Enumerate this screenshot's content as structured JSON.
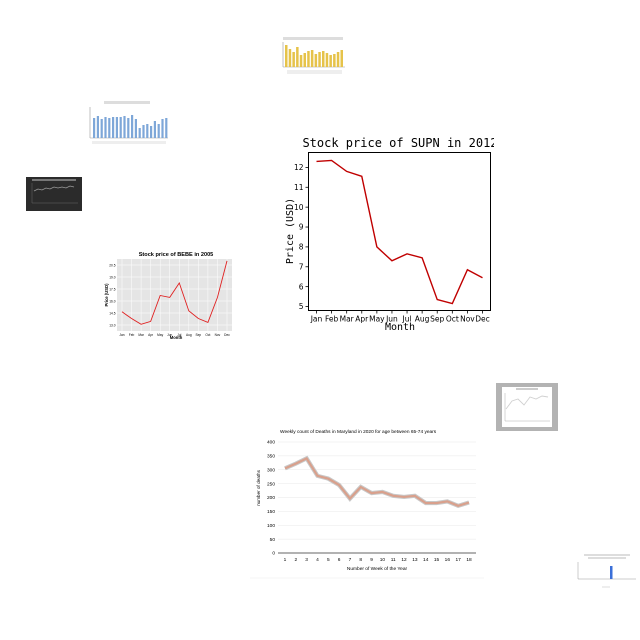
{
  "main_chart": {
    "title": "Stock price of SUPN in 2012",
    "xlabel": "Month",
    "ylabel": "Price (USD)"
  },
  "thumb_bede": {
    "title": "Stock price of BEBE in 2005",
    "xlabel": "Month",
    "ylabel": "Price (USD)"
  },
  "thumb_maryland": {
    "title": "Weekly count of Deaths in Maryland in 2020 for age between 65-74 years",
    "xlabel": "Number of Week of the Year",
    "ylabel": "number of deaths"
  },
  "chart_data": [
    {
      "type": "line",
      "title": "Stock price of SUPN in 2012",
      "xlabel": "Month",
      "ylabel": "Price (USD)",
      "categories": [
        "Jan",
        "Feb",
        "Mar",
        "Apr",
        "May",
        "Jun",
        "Jul",
        "Aug",
        "Sep",
        "Oct",
        "Nov",
        "Dec"
      ],
      "values": [
        12.3,
        12.35,
        11.8,
        11.55,
        8.0,
        7.3,
        7.65,
        7.45,
        5.35,
        5.15,
        6.85,
        6.45
      ],
      "yticks": [
        5,
        6,
        7,
        8,
        9,
        10,
        11,
        12
      ],
      "ylim": [
        4.8,
        12.75
      ],
      "color": "#c00000",
      "grid": false
    },
    {
      "type": "line",
      "title": "Stock price of BEBE in 2005",
      "xlabel": "Month",
      "ylabel": "Price (USD)",
      "categories": [
        "Jan",
        "Feb",
        "Mar",
        "Apr",
        "May",
        "Jun",
        "Jul",
        "Aug",
        "Sep",
        "Oct",
        "Nov",
        "Dec"
      ],
      "values": [
        15.5,
        14.8,
        14.2,
        14.5,
        17.2,
        17.0,
        18.5,
        15.6,
        14.8,
        14.4,
        17.0,
        20.8
      ],
      "yticks": [
        "13.0",
        "14.5",
        "16.0",
        "17.5",
        "19.0",
        "20.5"
      ],
      "ylim": [
        13.5,
        21
      ],
      "color": "#e02020",
      "grid": true
    },
    {
      "type": "line",
      "title": "Weekly count of Deaths in Maryland in 2020 for age between 65-74 years",
      "xlabel": "Number of Week of the Year",
      "ylabel": "number of deaths",
      "categories": [
        "1",
        "2",
        "3",
        "4",
        "5",
        "6",
        "7",
        "8",
        "9",
        "10",
        "11",
        "12",
        "13",
        "14",
        "15",
        "16",
        "17",
        "18"
      ],
      "values": [
        305,
        322,
        341,
        278,
        268,
        245,
        196,
        238,
        216,
        220,
        206,
        202,
        206,
        180,
        180,
        186,
        170,
        182
      ],
      "yticks": [
        0,
        50,
        100,
        150,
        200,
        250,
        300,
        350,
        400
      ],
      "ylim": [
        0,
        400
      ],
      "color": "#d9a08c",
      "grid": true
    }
  ],
  "colors": {
    "supn_line": "#c00000",
    "bebe_line": "#e02020",
    "bebe_bg": "#e5e5e5",
    "maryland_line": "#d9a08c",
    "thumb_bar_yellow": "#e6c34a",
    "thumb_bar_blue": "#7ea7d8",
    "thumb_dark_bg": "#2b2b2b",
    "thumb_gray_frame": "#b3b3b3",
    "thumb_blue_bar": "#3a6fd8"
  }
}
